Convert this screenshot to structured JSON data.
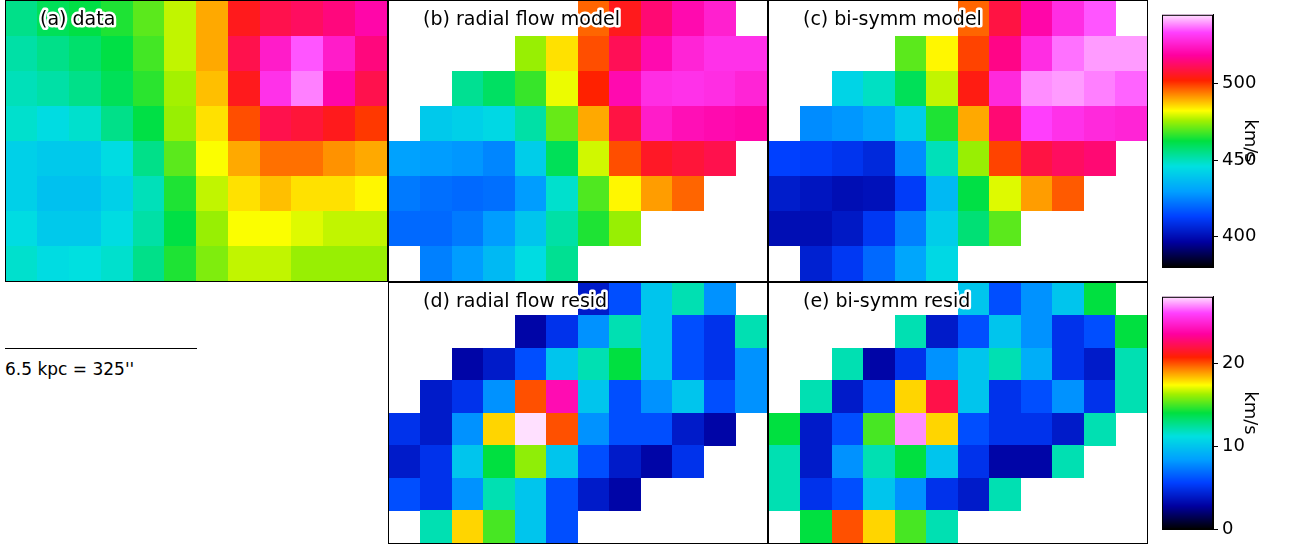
{
  "chart_data": [
    {
      "type": "heatmap",
      "tick_labels": false,
      "colorbar": {
        "label": "km/s",
        "range": [
          380,
          545
        ],
        "ticks": [
          400,
          450,
          500
        ]
      },
      "panels": [
        {
          "title": "(a) data",
          "xlim": [
            0,
            12
          ],
          "ylim": [
            0,
            8
          ],
          "cells": [
            [
              455,
              460,
              462,
              465,
              470,
              478,
              490,
              505,
              510,
              512,
              515,
              520
            ],
            [
              452,
              455,
              458,
              462,
              468,
              478,
              490,
              510,
              525,
              535,
              525,
              515
            ],
            [
              450,
              452,
              455,
              460,
              466,
              476,
              488,
              505,
              530,
              538,
              520,
              510
            ],
            [
              448,
              445,
              448,
              455,
              462,
              475,
              485,
              498,
              510,
              508,
              505,
              500
            ],
            [
              442,
              440,
              440,
              445,
              455,
              470,
              482,
              490,
              495,
              495,
              492,
              490
            ],
            [
              442,
              438,
              438,
              442,
              450,
              465,
              478,
              485,
              488,
              485,
              485,
              483
            ],
            [
              445,
              440,
              440,
              445,
              452,
              462,
              475,
              482,
              482,
              480,
              478,
              478
            ],
            [
              448,
              445,
              446,
              448,
              455,
              465,
              473,
              478,
              478,
              475,
              475,
              475
            ]
          ]
        },
        {
          "title": "(b) radial flow model",
          "xlim": [
            0,
            12
          ],
          "ylim": [
            0,
            8
          ],
          "cells": [
            [
              null,
              null,
              null,
              null,
              null,
              null,
              496,
              505,
              514,
              521,
              526,
              null
            ],
            [
              null,
              null,
              null,
              null,
              475,
              485,
              498,
              511,
              521,
              527,
              530,
              530
            ],
            [
              null,
              null,
              454,
              459,
              467,
              481,
              502,
              521,
              529,
              530,
              529,
              527
            ],
            [
              null,
              440,
              442,
              444,
              452,
              471,
              490,
              509,
              525,
              522,
              521,
              520
            ],
            [
              430,
              429,
              428,
              425,
              441,
              460,
              479,
              498,
              506,
              508,
              510,
              null
            ],
            [
              423,
              421,
              420,
              421,
              429,
              448,
              469,
              483,
              491,
              496,
              null,
              null
            ],
            [
              420,
              420,
              423,
              429,
              439,
              452,
              465,
              475,
              null,
              null,
              null,
              null
            ],
            [
              null,
              424,
              429,
              436,
              445,
              454,
              null,
              null,
              null,
              null,
              null,
              null
            ]
          ]
        },
        {
          "title": "(c) bi-symm model",
          "xlim": [
            0,
            12
          ],
          "ylim": [
            0,
            8
          ],
          "cells": [
            [
              null,
              null,
              null,
              null,
              null,
              null,
              496,
              509,
              520,
              529,
              535,
              null
            ],
            [
              null,
              null,
              null,
              null,
              470,
              483,
              499,
              516,
              529,
              537,
              540,
              540
            ],
            [
              null,
              null,
              443,
              449,
              460,
              478,
              504,
              528,
              539,
              540,
              538,
              536
            ],
            [
              null,
              426,
              428,
              431,
              441,
              465,
              490,
              514,
              533,
              530,
              528,
              527
            ],
            [
              413,
              412,
              410,
              407,
              426,
              450,
              475,
              499,
              509,
              512,
              514,
              null
            ],
            [
              404,
              402,
              400,
              401,
              412,
              436,
              462,
              480,
              491,
              497,
              null,
              null
            ],
            [
              400,
              400,
              403,
              411,
              424,
              441,
              457,
              470,
              null,
              null,
              null,
              null
            ],
            [
              null,
              405,
              411,
              420,
              431,
              444,
              null,
              null,
              null,
              null,
              null,
              null
            ]
          ]
        }
      ]
    },
    {
      "type": "heatmap",
      "tick_labels": false,
      "colorbar": {
        "label": "km/s",
        "range": [
          0,
          28
        ],
        "ticks": [
          0,
          10,
          20
        ]
      },
      "panels": [
        {
          "title": "(d) radial flow resid",
          "xlim": [
            0,
            12
          ],
          "ylim": [
            0,
            8
          ],
          "cells": [
            [
              null,
              null,
              null,
              null,
              null,
              null,
              4,
              6,
              10,
              12,
              8,
              null
            ],
            [
              null,
              null,
              null,
              null,
              3,
              5,
              8,
              12,
              10,
              6,
              5,
              12
            ],
            [
              null,
              null,
              3,
              4,
              6,
              10,
              12,
              14,
              10,
              6,
              5,
              8
            ],
            [
              null,
              4,
              5,
              8,
              20,
              24,
              10,
              6,
              8,
              10,
              6,
              8
            ],
            [
              5,
              4,
              8,
              18,
              28,
              20,
              8,
              6,
              6,
              4,
              3,
              null
            ],
            [
              4,
              5,
              10,
              14,
              16,
              10,
              6,
              4,
              3,
              5,
              null,
              null
            ],
            [
              6,
              5,
              8,
              12,
              10,
              6,
              4,
              3,
              null,
              null,
              null,
              null
            ],
            [
              null,
              12,
              18,
              15,
              10,
              6,
              null,
              null,
              null,
              null,
              null,
              null
            ]
          ]
        },
        {
          "title": "(e) bi-symm resid",
          "xlim": [
            0,
            12
          ],
          "ylim": [
            0,
            8
          ],
          "cells": [
            [
              null,
              null,
              null,
              null,
              null,
              null,
              10,
              6,
              8,
              10,
              14,
              null
            ],
            [
              null,
              null,
              null,
              null,
              12,
              4,
              6,
              10,
              8,
              5,
              6,
              14
            ],
            [
              null,
              null,
              12,
              3,
              5,
              8,
              10,
              12,
              9,
              5,
              4,
              12
            ],
            [
              null,
              12,
              4,
              6,
              18,
              22,
              10,
              5,
              6,
              8,
              5,
              12
            ],
            [
              14,
              4,
              6,
              15,
              27,
              18,
              6,
              5,
              5,
              4,
              12,
              null
            ],
            [
              12,
              4,
              8,
              12,
              14,
              10,
              5,
              3,
              3,
              12,
              null,
              null
            ],
            [
              12,
              5,
              6,
              10,
              8,
              5,
              4,
              12,
              null,
              null,
              null,
              null
            ],
            [
              null,
              14,
              20,
              18,
              15,
              12,
              null,
              null,
              null,
              null,
              null,
              null
            ]
          ]
        }
      ]
    }
  ],
  "scale_bar": "6.5 kpc = 325''"
}
